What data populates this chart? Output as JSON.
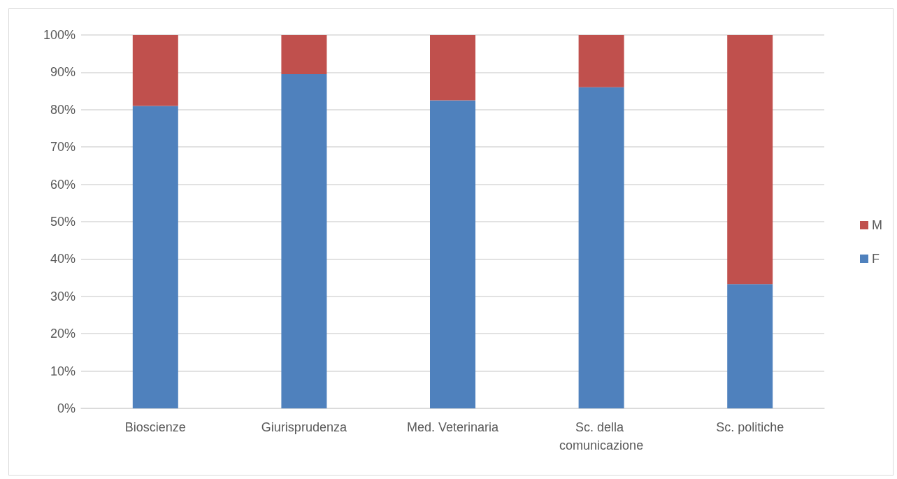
{
  "chart_data": {
    "type": "bar",
    "stacked": true,
    "categories": [
      "Bioscienze",
      "Giurisprudenza",
      "Med. Veterinaria",
      "Sc. della comunicazione",
      "Sc. politiche"
    ],
    "series": [
      {
        "name": "F",
        "color": "#4f81bd",
        "values": [
          81,
          89.5,
          82.5,
          86,
          33.3
        ]
      },
      {
        "name": "M",
        "color": "#c0504d",
        "values": [
          19,
          10.5,
          17.5,
          14,
          66.7
        ]
      }
    ],
    "ylim": [
      0,
      100
    ],
    "yticks": [
      {
        "value": 0,
        "label": "0%"
      },
      {
        "value": 10,
        "label": "10%"
      },
      {
        "value": 20,
        "label": "20%"
      },
      {
        "value": 30,
        "label": "30%"
      },
      {
        "value": 40,
        "label": "40%"
      },
      {
        "value": 50,
        "label": "50%"
      },
      {
        "value": 60,
        "label": "60%"
      },
      {
        "value": 70,
        "label": "70%"
      },
      {
        "value": 80,
        "label": "80%"
      },
      {
        "value": 90,
        "label": "90%"
      },
      {
        "value": 100,
        "label": "100%"
      }
    ],
    "grid": "y",
    "legend": "right"
  }
}
